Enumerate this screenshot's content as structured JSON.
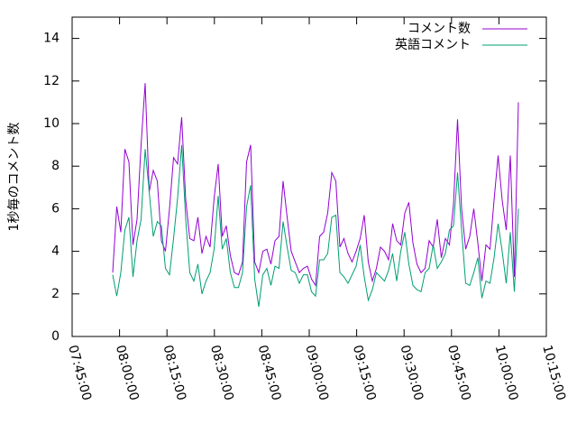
{
  "chart_data": {
    "type": "line",
    "ylabel": "1秒毎のコメント数",
    "x": [
      "07:57:50",
      "07:59:07",
      "08:00:24",
      "08:01:41",
      "08:02:58",
      "08:04:15",
      "08:05:32",
      "08:06:49",
      "08:08:06",
      "08:09:23",
      "08:10:40",
      "08:11:57",
      "08:13:14",
      "08:14:31",
      "08:15:48",
      "08:17:05",
      "08:18:22",
      "08:19:39",
      "08:20:56",
      "08:22:13",
      "08:23:30",
      "08:24:47",
      "08:26:04",
      "08:27:21",
      "08:28:38",
      "08:29:55",
      "08:31:12",
      "08:32:29",
      "08:33:46",
      "08:35:03",
      "08:36:20",
      "08:37:37",
      "08:38:54",
      "08:40:11",
      "08:41:28",
      "08:42:45",
      "08:44:02",
      "08:45:19",
      "08:46:36",
      "08:47:53",
      "08:49:10",
      "08:50:27",
      "08:51:44",
      "08:53:01",
      "08:54:18",
      "08:55:35",
      "08:56:52",
      "08:58:09",
      "08:59:26",
      "09:00:43",
      "09:02:00",
      "09:03:17",
      "09:04:34",
      "09:05:51",
      "09:07:08",
      "09:08:25",
      "09:09:42",
      "09:10:59",
      "09:12:16",
      "09:13:33",
      "09:14:50",
      "09:16:07",
      "09:17:24",
      "09:18:41",
      "09:19:58",
      "09:21:15",
      "09:22:32",
      "09:23:49",
      "09:25:06",
      "09:26:23",
      "09:27:40",
      "09:28:57",
      "09:30:14",
      "09:31:31",
      "09:32:48",
      "09:34:05",
      "09:35:22",
      "09:36:39",
      "09:37:56",
      "09:39:13",
      "09:40:30",
      "09:41:47",
      "09:43:04",
      "09:44:21",
      "09:45:38",
      "09:46:55",
      "09:48:12",
      "09:49:29",
      "09:50:46",
      "09:52:03",
      "09:53:20",
      "09:54:37",
      "09:55:54",
      "09:57:11",
      "09:58:28",
      "09:59:45",
      "10:01:02",
      "10:02:19",
      "10:03:36",
      "10:04:53",
      "10:06:10"
    ],
    "series": [
      {
        "name": "コメント数",
        "color": "#9400d3",
        "values": [
          3.0,
          6.1,
          4.9,
          8.8,
          8.2,
          4.3,
          5.5,
          9.0,
          11.9,
          6.8,
          7.8,
          7.3,
          4.5,
          4.0,
          6.0,
          8.4,
          8.1,
          10.3,
          6.4,
          4.6,
          4.5,
          5.6,
          3.9,
          4.7,
          4.2,
          6.5,
          8.1,
          4.7,
          5.2,
          3.8,
          3.0,
          2.9,
          3.5,
          8.2,
          9.0,
          3.5,
          3.0,
          4.0,
          4.1,
          3.4,
          4.5,
          4.7,
          7.3,
          5.6,
          4.0,
          3.5,
          3.0,
          3.2,
          3.3,
          2.7,
          2.4,
          4.7,
          4.9,
          5.8,
          7.7,
          7.3,
          4.2,
          4.6,
          3.9,
          3.5,
          4.0,
          4.6,
          5.7,
          3.5,
          2.6,
          3.2,
          4.2,
          4.0,
          3.6,
          5.3,
          4.5,
          4.3,
          5.8,
          6.3,
          4.4,
          3.4,
          3.0,
          3.2,
          4.5,
          4.2,
          5.5,
          3.7,
          4.6,
          4.3,
          6.2,
          10.2,
          6.0,
          4.1,
          4.7,
          6.0,
          4.4,
          2.6,
          4.3,
          4.1,
          6.4,
          8.5,
          6.4,
          5.0,
          8.5,
          2.8,
          11.0
        ]
      },
      {
        "name": "英語コメント",
        "color": "#009e73",
        "values": [
          2.9,
          1.9,
          3.0,
          5.0,
          5.6,
          2.8,
          4.5,
          5.5,
          8.8,
          6.8,
          4.7,
          5.4,
          5.2,
          3.2,
          2.9,
          4.6,
          6.5,
          9.0,
          5.5,
          3.0,
          2.6,
          3.4,
          2.0,
          2.6,
          3.0,
          4.1,
          6.6,
          4.1,
          4.6,
          3.0,
          2.3,
          2.3,
          3.0,
          6.1,
          7.1,
          2.7,
          1.4,
          2.9,
          3.2,
          2.4,
          3.3,
          3.2,
          5.4,
          4.2,
          3.1,
          3.0,
          2.5,
          2.9,
          2.9,
          2.1,
          1.9,
          3.6,
          3.6,
          3.9,
          5.6,
          5.7,
          3.0,
          2.8,
          2.5,
          2.9,
          3.3,
          4.3,
          2.8,
          1.7,
          2.2,
          3.0,
          2.8,
          2.6,
          3.1,
          3.9,
          2.6,
          4.0,
          4.9,
          3.4,
          2.4,
          2.2,
          2.1,
          3.0,
          3.2,
          4.3,
          3.2,
          3.5,
          3.9,
          5.0,
          5.2,
          7.7,
          5.0,
          2.5,
          2.4,
          3.0,
          3.7,
          1.8,
          2.6,
          2.5,
          3.7,
          5.3,
          4.0,
          2.5,
          4.9,
          2.1,
          6.0
        ]
      }
    ],
    "xlim": [
      "07:45:00",
      "10:15:00"
    ],
    "xticks": [
      "07:45:00",
      "08:00:00",
      "08:15:00",
      "08:30:00",
      "08:45:00",
      "09:00:00",
      "09:15:00",
      "09:30:00",
      "09:45:00",
      "10:00:00",
      "10:15:00"
    ],
    "ylim": [
      0,
      15
    ],
    "yticks": [
      0,
      2,
      4,
      6,
      8,
      10,
      12,
      14
    ],
    "legend": "top-right"
  }
}
